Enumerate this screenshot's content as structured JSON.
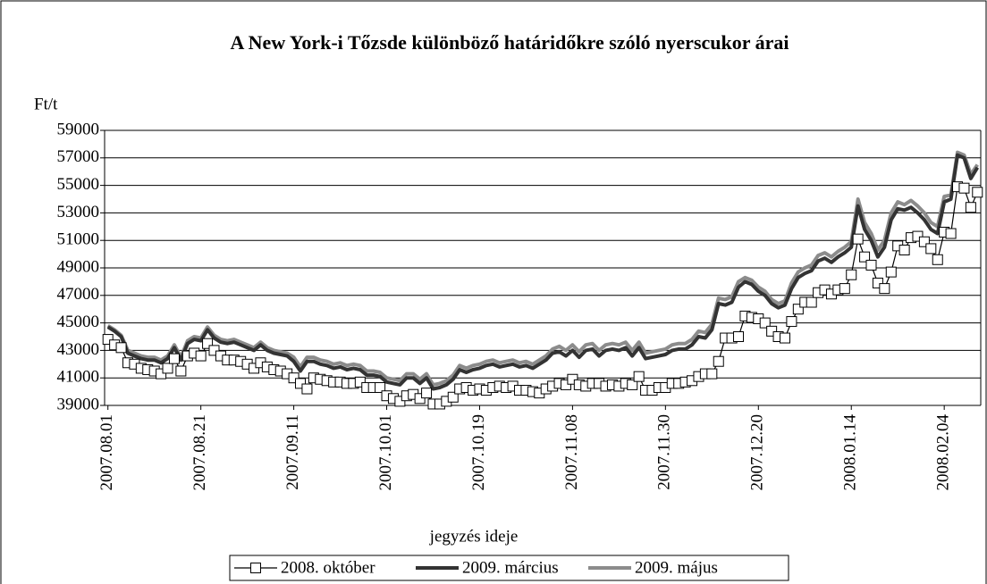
{
  "chart_data": {
    "type": "line",
    "title": "A New York-i Tőzsde különböző határidőkre szóló nyerscukor árai",
    "y_label": "Ft/t",
    "x_label": "jegyzés ideje",
    "categories": [
      "2007.08.01",
      null,
      null,
      null,
      null,
      null,
      null,
      null,
      null,
      null,
      null,
      null,
      null,
      null,
      "2007.08.21",
      null,
      null,
      null,
      null,
      null,
      null,
      null,
      null,
      null,
      null,
      null,
      null,
      null,
      "2007.09.11",
      null,
      null,
      null,
      null,
      null,
      null,
      null,
      null,
      null,
      null,
      null,
      null,
      null,
      "2007.10.01",
      null,
      null,
      null,
      null,
      null,
      null,
      null,
      null,
      null,
      null,
      null,
      null,
      null,
      "2007.10.19",
      null,
      null,
      null,
      null,
      null,
      null,
      null,
      null,
      null,
      null,
      null,
      null,
      null,
      "2007.11.08",
      null,
      null,
      null,
      null,
      null,
      null,
      null,
      null,
      null,
      null,
      null,
      null,
      null,
      "2007.11.30",
      null,
      null,
      null,
      null,
      null,
      null,
      null,
      null,
      null,
      null,
      null,
      null,
      null,
      "2007.12.20",
      null,
      null,
      null,
      null,
      null,
      null,
      null,
      null,
      null,
      null,
      null,
      null,
      null,
      "2008.01.14",
      null,
      null,
      null,
      null,
      null,
      null,
      null,
      null,
      null,
      null,
      null,
      null,
      null,
      "2008.02.04",
      null,
      null,
      null,
      null,
      null
    ],
    "series": [
      {
        "name": "2008. október",
        "color": "#000000",
        "marker": true,
        "width": 1.2,
        "values": [
          43800,
          43400,
          43200,
          42100,
          42000,
          41700,
          41600,
          41500,
          41300,
          41700,
          42400,
          41500,
          42600,
          42800,
          42600,
          43500,
          43000,
          42600,
          42300,
          42300,
          42200,
          42000,
          41700,
          42100,
          41800,
          41600,
          41500,
          41300,
          41000,
          40600,
          40200,
          41000,
          40900,
          40800,
          40700,
          40700,
          40600,
          40600,
          40700,
          40300,
          40300,
          40300,
          39700,
          39500,
          39300,
          39700,
          39800,
          39500,
          39900,
          39100,
          39100,
          39300,
          39600,
          40200,
          40300,
          40100,
          40200,
          40100,
          40300,
          40400,
          40300,
          40400,
          40100,
          40100,
          40000,
          39900,
          40200,
          40400,
          40600,
          40500,
          40900,
          40500,
          40400,
          40600,
          40600,
          40400,
          40500,
          40400,
          40600,
          40500,
          41100,
          40100,
          40100,
          40300,
          40300,
          40600,
          40600,
          40700,
          40800,
          41100,
          41300,
          41300,
          42200,
          43900,
          43900,
          44000,
          45500,
          45400,
          45300,
          45000,
          44400,
          44000,
          43900,
          45100,
          46000,
          46500,
          46500,
          47200,
          47400,
          47100,
          47400,
          47500,
          48500,
          51100,
          49800,
          49200,
          47900,
          47500,
          48700,
          50600,
          50300,
          51200,
          51300,
          50900,
          50400,
          49600,
          51600,
          51500,
          54900,
          54800,
          53400,
          54500
        ]
      },
      {
        "name": "2009. március",
        "color": "#333333",
        "marker": false,
        "width": 4,
        "values": [
          44700,
          44400,
          44000,
          42800,
          42600,
          42400,
          42300,
          42300,
          42100,
          42400,
          43200,
          42300,
          43500,
          43800,
          43700,
          44500,
          43900,
          43600,
          43500,
          43600,
          43400,
          43200,
          43000,
          43400,
          43000,
          42800,
          42700,
          42600,
          42200,
          41500,
          42200,
          42200,
          42000,
          41900,
          41700,
          41800,
          41600,
          41700,
          41600,
          41200,
          41200,
          41100,
          40700,
          40600,
          40500,
          41000,
          41000,
          40600,
          41000,
          40200,
          40300,
          40500,
          40900,
          41600,
          41400,
          41600,
          41700,
          41900,
          42000,
          41800,
          41900,
          42000,
          41800,
          41900,
          41700,
          42000,
          42300,
          42800,
          42900,
          42600,
          43000,
          42500,
          43000,
          43100,
          42600,
          43000,
          43100,
          43000,
          43200,
          42600,
          43200,
          42400,
          42500,
          42600,
          42700,
          43000,
          43100,
          43100,
          43400,
          44000,
          43900,
          44500,
          46400,
          46300,
          46500,
          47600,
          48000,
          47800,
          47300,
          47000,
          46400,
          46100,
          46300,
          47500,
          48300,
          48600,
          48800,
          49500,
          49700,
          49400,
          49800,
          50100,
          50500,
          53500,
          51800,
          51000,
          49800,
          50500,
          52500,
          53300,
          53200,
          53400,
          53000,
          52500,
          51800,
          51500,
          53800,
          54000,
          57200,
          57000,
          55500,
          56300
        ]
      },
      {
        "name": "2009. május",
        "color": "#8c8c8c",
        "marker": false,
        "width": 4,
        "values": [
          44800,
          44500,
          44100,
          43000,
          42800,
          42600,
          42500,
          42500,
          42300,
          42600,
          43400,
          42500,
          43700,
          44000,
          43900,
          44700,
          44100,
          43800,
          43700,
          43800,
          43600,
          43400,
          43200,
          43600,
          43200,
          43000,
          42900,
          42800,
          42500,
          41800,
          42500,
          42500,
          42300,
          42200,
          42000,
          42100,
          41900,
          42000,
          41900,
          41500,
          41500,
          41400,
          41000,
          40900,
          40800,
          41300,
          41300,
          40900,
          41300,
          40500,
          40600,
          40800,
          41200,
          41900,
          41700,
          41900,
          42000,
          42200,
          42300,
          42100,
          42200,
          42300,
          42100,
          42200,
          42000,
          42300,
          42600,
          43100,
          43300,
          43000,
          43400,
          42900,
          43400,
          43500,
          43000,
          43400,
          43500,
          43400,
          43600,
          43000,
          43600,
          42800,
          42900,
          43000,
          43100,
          43400,
          43500,
          43500,
          43800,
          44400,
          44300,
          44900,
          46800,
          46700,
          46900,
          48000,
          48300,
          48100,
          47600,
          47300,
          46700,
          46400,
          46600,
          47900,
          48700,
          49000,
          49200,
          49900,
          50100,
          49800,
          50200,
          50500,
          50900,
          54000,
          52300,
          51500,
          50300,
          51000,
          53000,
          53800,
          53600,
          53900,
          53500,
          53000,
          52300,
          52000,
          54200,
          54300,
          57400,
          57200,
          55800,
          56500
        ]
      }
    ],
    "ylim": [
      39000,
      59000
    ],
    "yticks": [
      39000,
      41000,
      43000,
      45000,
      47000,
      49000,
      51000,
      53000,
      55000,
      57000,
      59000
    ],
    "grid": true,
    "legend": "bottom"
  }
}
